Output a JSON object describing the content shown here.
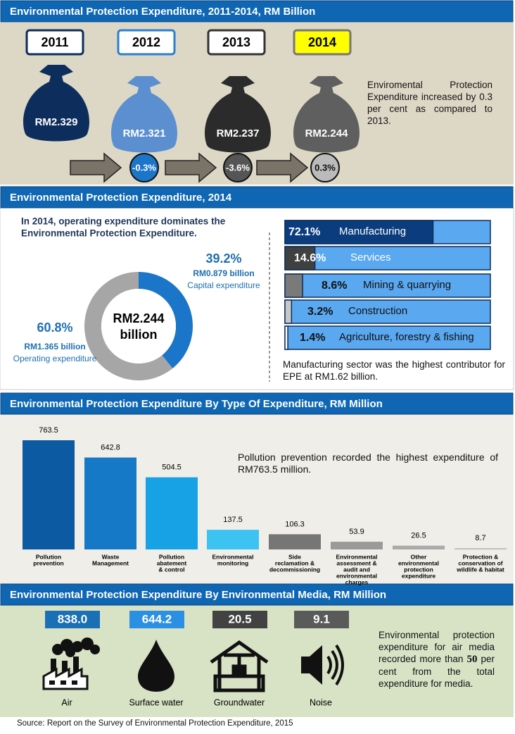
{
  "s1": {
    "title": "Environmental Protection Expenditure, 2011-2014, RM Billion",
    "years": [
      "2011",
      "2012",
      "2013",
      "2014"
    ],
    "amounts": [
      "RM2.329",
      "RM2.321",
      "RM2.237",
      "RM2.244"
    ],
    "changes": [
      "-0.3%",
      "-3.6%",
      "0.3%"
    ],
    "note": "Enviromental Protection Expenditure increased by 0.3 per cent as compared to 2013."
  },
  "s2": {
    "title": "Environmental Protection Expenditure, 2014",
    "intro": [
      "In 2014, operating expenditure dominates the",
      "Environmental Protection Expenditure."
    ],
    "total": [
      "RM2.244",
      "billion"
    ],
    "donut": {
      "values": [
        39.2,
        60.8
      ],
      "value_labels": [
        "39.2%",
        "60.8%"
      ],
      "amounts": [
        "RM0.879 billion",
        "RM1.365 billion"
      ],
      "names": [
        "Capital expenditure",
        "Operating expenditure"
      ],
      "colors": [
        "#1b75c9",
        "#a6a6a6"
      ]
    },
    "sectors": {
      "values": [
        72.1,
        14.6,
        8.6,
        3.2,
        1.4
      ],
      "value_labels": [
        "72.1%",
        "14.6%",
        "8.6%",
        "3.2%",
        "1.4%"
      ],
      "names": [
        "Manufacturing",
        "Services",
        "Mining & quarrying",
        "Construction",
        "Agriculture, forestry & fishing"
      ],
      "colors": [
        "#0b3d7e",
        "#404040",
        "#7a7a7a",
        "#c8c8c8",
        "#ffffff"
      ]
    },
    "note": "Manufacturing sector was the highest contributor for EPE at RM1.62 billion."
  },
  "s3": {
    "title": "Environmental Protection Expenditure By Type Of Expenditure, RM Million",
    "categories": [
      [
        "Pollution",
        "prevention"
      ],
      [
        "Waste",
        "Management"
      ],
      [
        "Pollution",
        "abatement",
        "& control"
      ],
      [
        "Environmental",
        "monitoring"
      ],
      [
        "Side",
        "reclamation &",
        "decommissioning"
      ],
      [
        "Environmental",
        "assessment &",
        "audit and",
        "environmental",
        "charges"
      ],
      [
        "Other",
        "environmental",
        "protection",
        "expenditure"
      ],
      [
        "Protection &",
        "conservation of",
        "wildlife & habitat"
      ]
    ],
    "values": [
      763.5,
      642.8,
      504.5,
      137.5,
      106.3,
      53.9,
      26.5,
      8.7
    ],
    "colors": [
      "#0b5aa2",
      "#1679c8",
      "#17a2e6",
      "#3cc3f2",
      "#767676",
      "#9a9a9a",
      "#ababab",
      "#bcbcbc"
    ],
    "note": "Pollution prevention recorded the highest expenditure of RM763.5 million."
  },
  "s4": {
    "title": "Environmental Protection Expenditure By Environmental Media, RM Million",
    "media": [
      "Air",
      "Surface water",
      "Groundwater",
      "Noise"
    ],
    "amounts": [
      "838.0",
      "644.2",
      "20.5",
      "9.1"
    ],
    "colors": [
      "#1a6fb5",
      "#2b8fe4",
      "#424242",
      "#5a5a5a"
    ],
    "note": [
      "Environmental protection expenditure for air media recorded more than ",
      "50",
      " per cent from the total expenditure for media."
    ]
  },
  "source": "Source: Report on the Survey of Environmental Protection Expenditure, 2015"
}
